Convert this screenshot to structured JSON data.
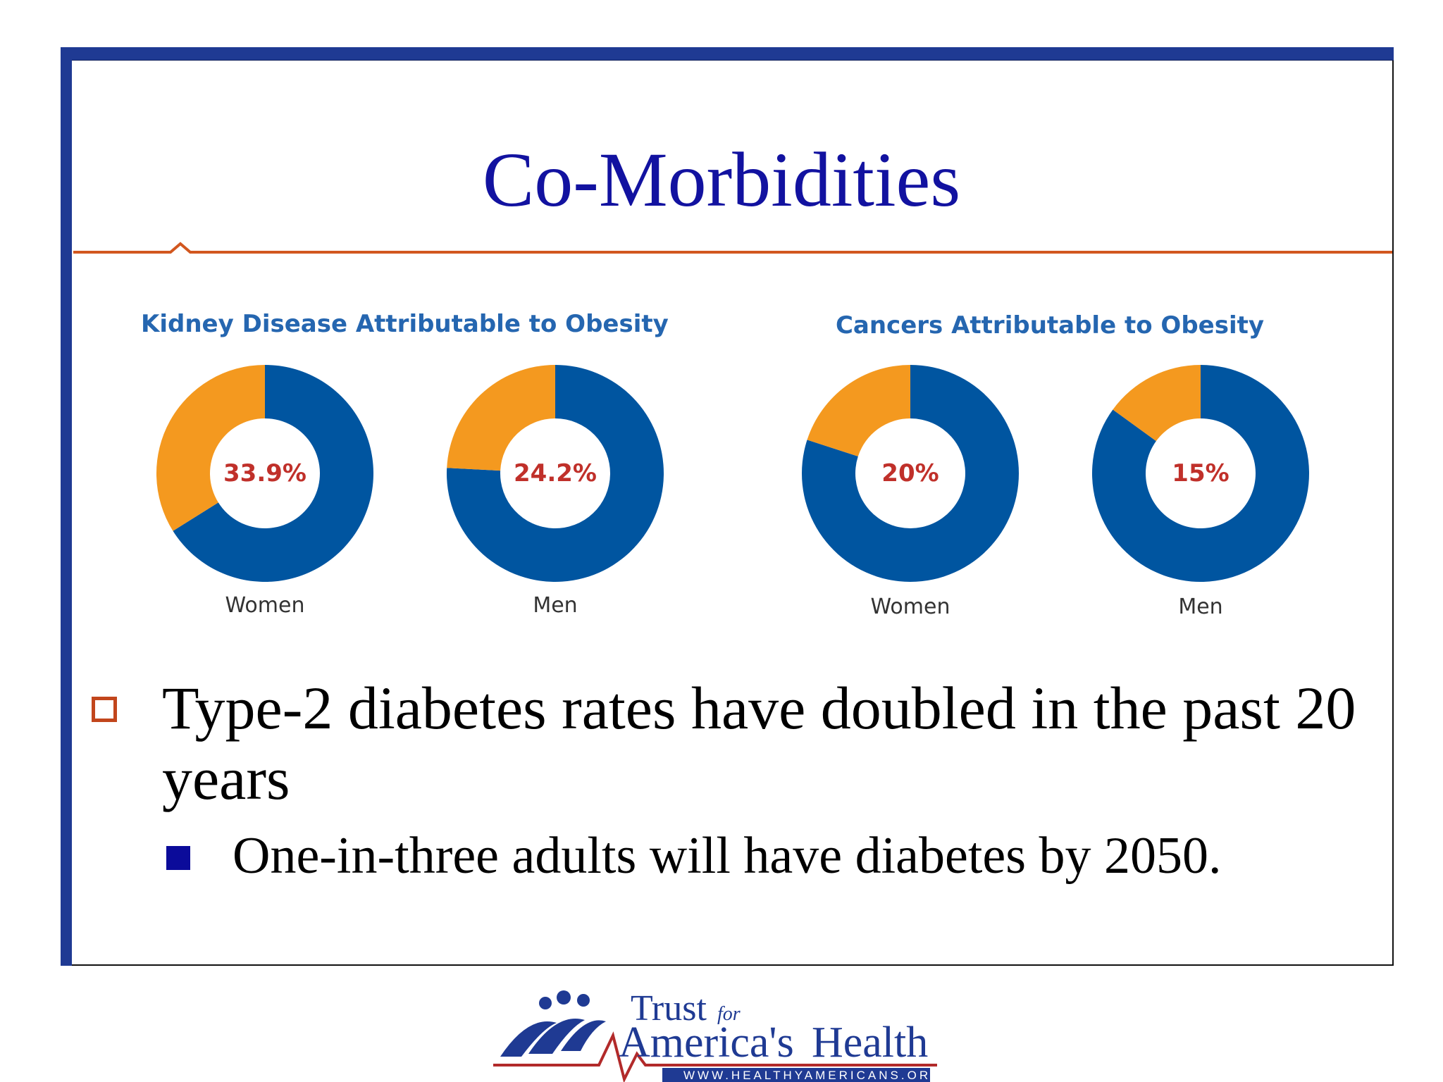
{
  "slide": {
    "title": "Co-Morbidities"
  },
  "chart_data": [
    {
      "type": "pie",
      "title": "Kidney Disease Attributable to Obesity",
      "categories": [
        "Women",
        "Men"
      ],
      "series": [
        {
          "values": [
            33.9,
            24.2
          ],
          "labels": [
            "33.9%",
            "24.2%"
          ]
        }
      ]
    },
    {
      "type": "pie",
      "title": "Cancers Attributable to Obesity",
      "categories": [
        "Women",
        "Men"
      ],
      "series": [
        {
          "values": [
            20,
            15
          ],
          "labels": [
            "20%",
            "15%"
          ]
        }
      ]
    }
  ],
  "colors": {
    "attributable": "#f4991f",
    "remainder": "#0055a0",
    "value_text": "#c0302a"
  },
  "bullets": {
    "level1": "Type-2 diabetes rates have doubled in the past 20 years",
    "level2": "One-in-three adults will have diabetes by 2050."
  },
  "logo": {
    "word_trust": "Trust",
    "word_for": "for",
    "word_americas": "America's",
    "word_health": "Health",
    "url": "WWW.HEALTHYAMERICANS.ORG"
  }
}
